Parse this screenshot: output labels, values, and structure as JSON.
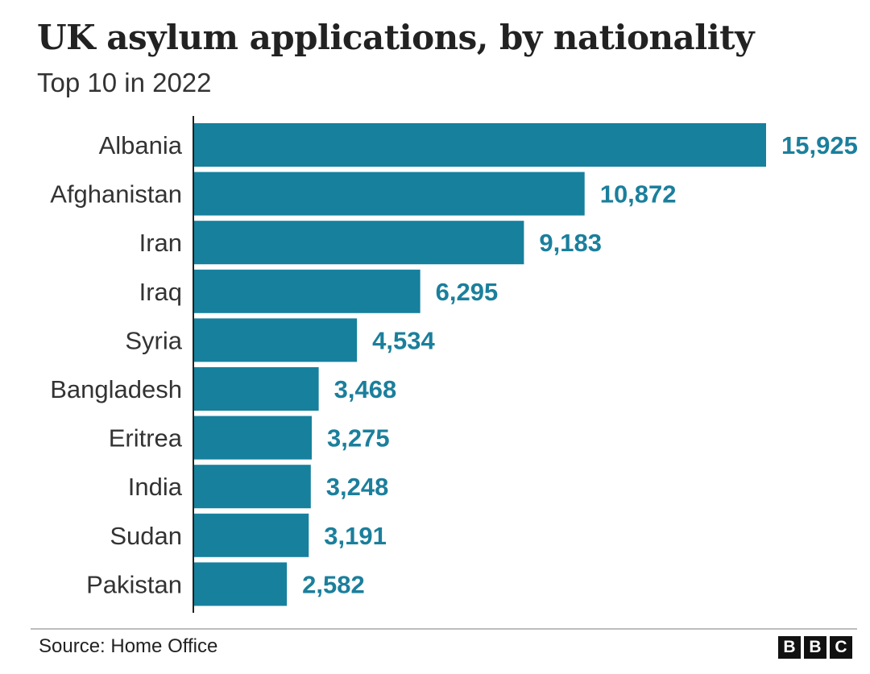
{
  "header": {
    "title": "UK asylum applications, by nationality",
    "subtitle": "Top 10 in 2022"
  },
  "footer": {
    "source": "Source: Home Office",
    "logo_letters": [
      "B",
      "B",
      "C"
    ]
  },
  "colors": {
    "bar": "#16809d",
    "value_label": "#1b7f9c",
    "axis": "#222222"
  },
  "chart_data": {
    "type": "bar",
    "orientation": "horizontal",
    "title": "UK asylum applications, by nationality",
    "subtitle": "Top 10 in 2022",
    "categories": [
      "Albania",
      "Afghanistan",
      "Iran",
      "Iraq",
      "Syria",
      "Bangladesh",
      "Eritrea",
      "India",
      "Sudan",
      "Pakistan"
    ],
    "values": [
      15925,
      10872,
      9183,
      6295,
      4534,
      3468,
      3275,
      3248,
      3191,
      2582
    ],
    "value_labels": [
      "15,925",
      "10,872",
      "9,183",
      "6,295",
      "4,534",
      "3,468",
      "3,275",
      "3,248",
      "3,191",
      "2,582"
    ],
    "xlim": [
      0,
      15925
    ],
    "grid": false,
    "legend": "none"
  }
}
